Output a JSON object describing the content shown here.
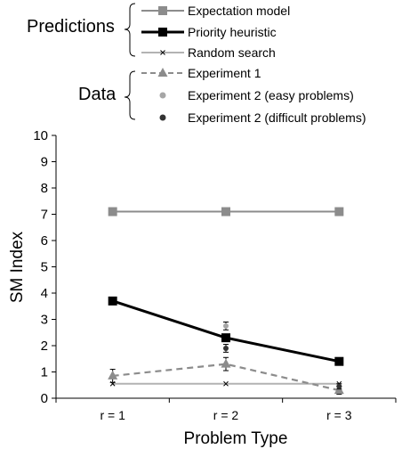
{
  "legend": {
    "predictions_label": "Predictions",
    "data_label": "Data",
    "items": [
      {
        "label": "Expectation model"
      },
      {
        "label": "Priority heuristic"
      },
      {
        "label": "Random search"
      },
      {
        "label": "Experiment 1"
      },
      {
        "label": "Experiment 2 (easy problems)"
      },
      {
        "label": "Experiment 2 (difficult problems)"
      }
    ]
  },
  "chart_data": {
    "type": "line",
    "xlabel": "Problem Type",
    "ylabel": "SM Index",
    "categories": [
      "r = 1",
      "r = 2",
      "r = 3"
    ],
    "ylim": [
      0,
      10
    ],
    "yticks": [
      0,
      1,
      2,
      3,
      4,
      5,
      6,
      7,
      8,
      9,
      10
    ],
    "grid": false,
    "series": [
      {
        "name": "Expectation model",
        "values": [
          7.1,
          7.1,
          7.1
        ],
        "color": "#8c8c8c",
        "marker": "square",
        "dash": "solid"
      },
      {
        "name": "Priority heuristic",
        "values": [
          3.7,
          2.3,
          1.4
        ],
        "color": "#000000",
        "marker": "square",
        "dash": "solid"
      },
      {
        "name": "Random search",
        "values": [
          0.55,
          0.55,
          0.55
        ],
        "color": "#b3b3b3",
        "marker": "x",
        "dash": "solid"
      },
      {
        "name": "Experiment 1",
        "values": [
          0.85,
          1.3,
          0.3
        ],
        "errors": [
          0.25,
          0.25,
          0.15
        ],
        "color": "#8c8c8c",
        "marker": "triangle",
        "dash": "dashed"
      },
      {
        "name": "Experiment 2 (easy problems)",
        "values": [
          null,
          2.75,
          null
        ],
        "errors": [
          null,
          0.15,
          null
        ],
        "color": "#a6a6a6",
        "marker": "circle"
      },
      {
        "name": "Experiment 2 (difficult problems)",
        "values": [
          null,
          1.9,
          0.45
        ],
        "errors": [
          null,
          0.15,
          0.1
        ],
        "color": "#333333",
        "marker": "circle"
      }
    ]
  }
}
